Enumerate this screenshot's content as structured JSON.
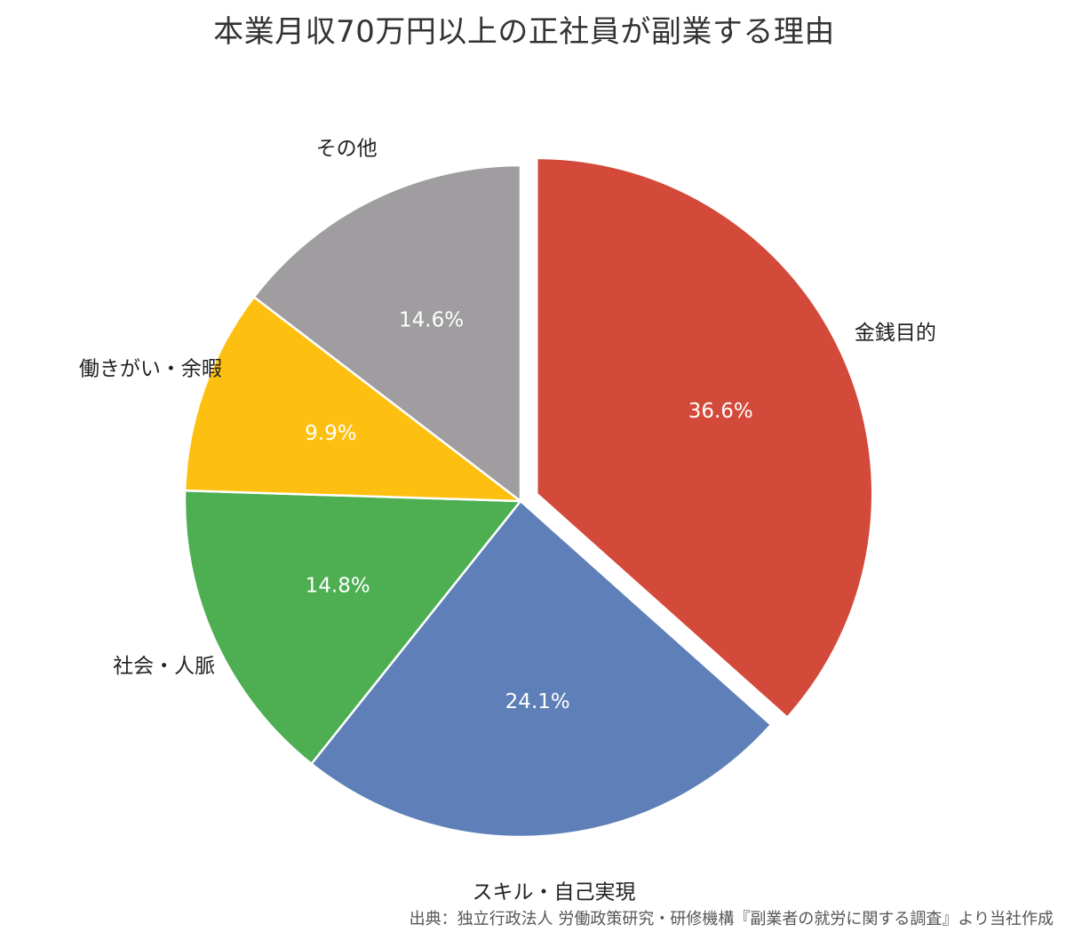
{
  "chart_data": {
    "type": "pie",
    "title": "本業月収70万円以上の正社員が副業する理由",
    "categories": [
      "金銭目的",
      "スキル・自己実現",
      "社会・人脈",
      "働きがい・余暇",
      "その他"
    ],
    "values": [
      36.6,
      24.1,
      14.8,
      9.9,
      14.6
    ],
    "value_labels": [
      "36.6%",
      "24.1%",
      "14.8%",
      "9.9%",
      "14.6%"
    ],
    "colors": [
      "#D34A3A",
      "#5E7FB8",
      "#4DAE52",
      "#FDC010",
      "#A09DA0"
    ],
    "start_angle": "12 o'clock",
    "direction": "clockwise",
    "exploded": [
      "金銭目的"
    ],
    "legend": "none"
  },
  "source": "出典：独立行政法人 労働政策研究・研修機構『副業者の就労に関する調査』より当社作成"
}
